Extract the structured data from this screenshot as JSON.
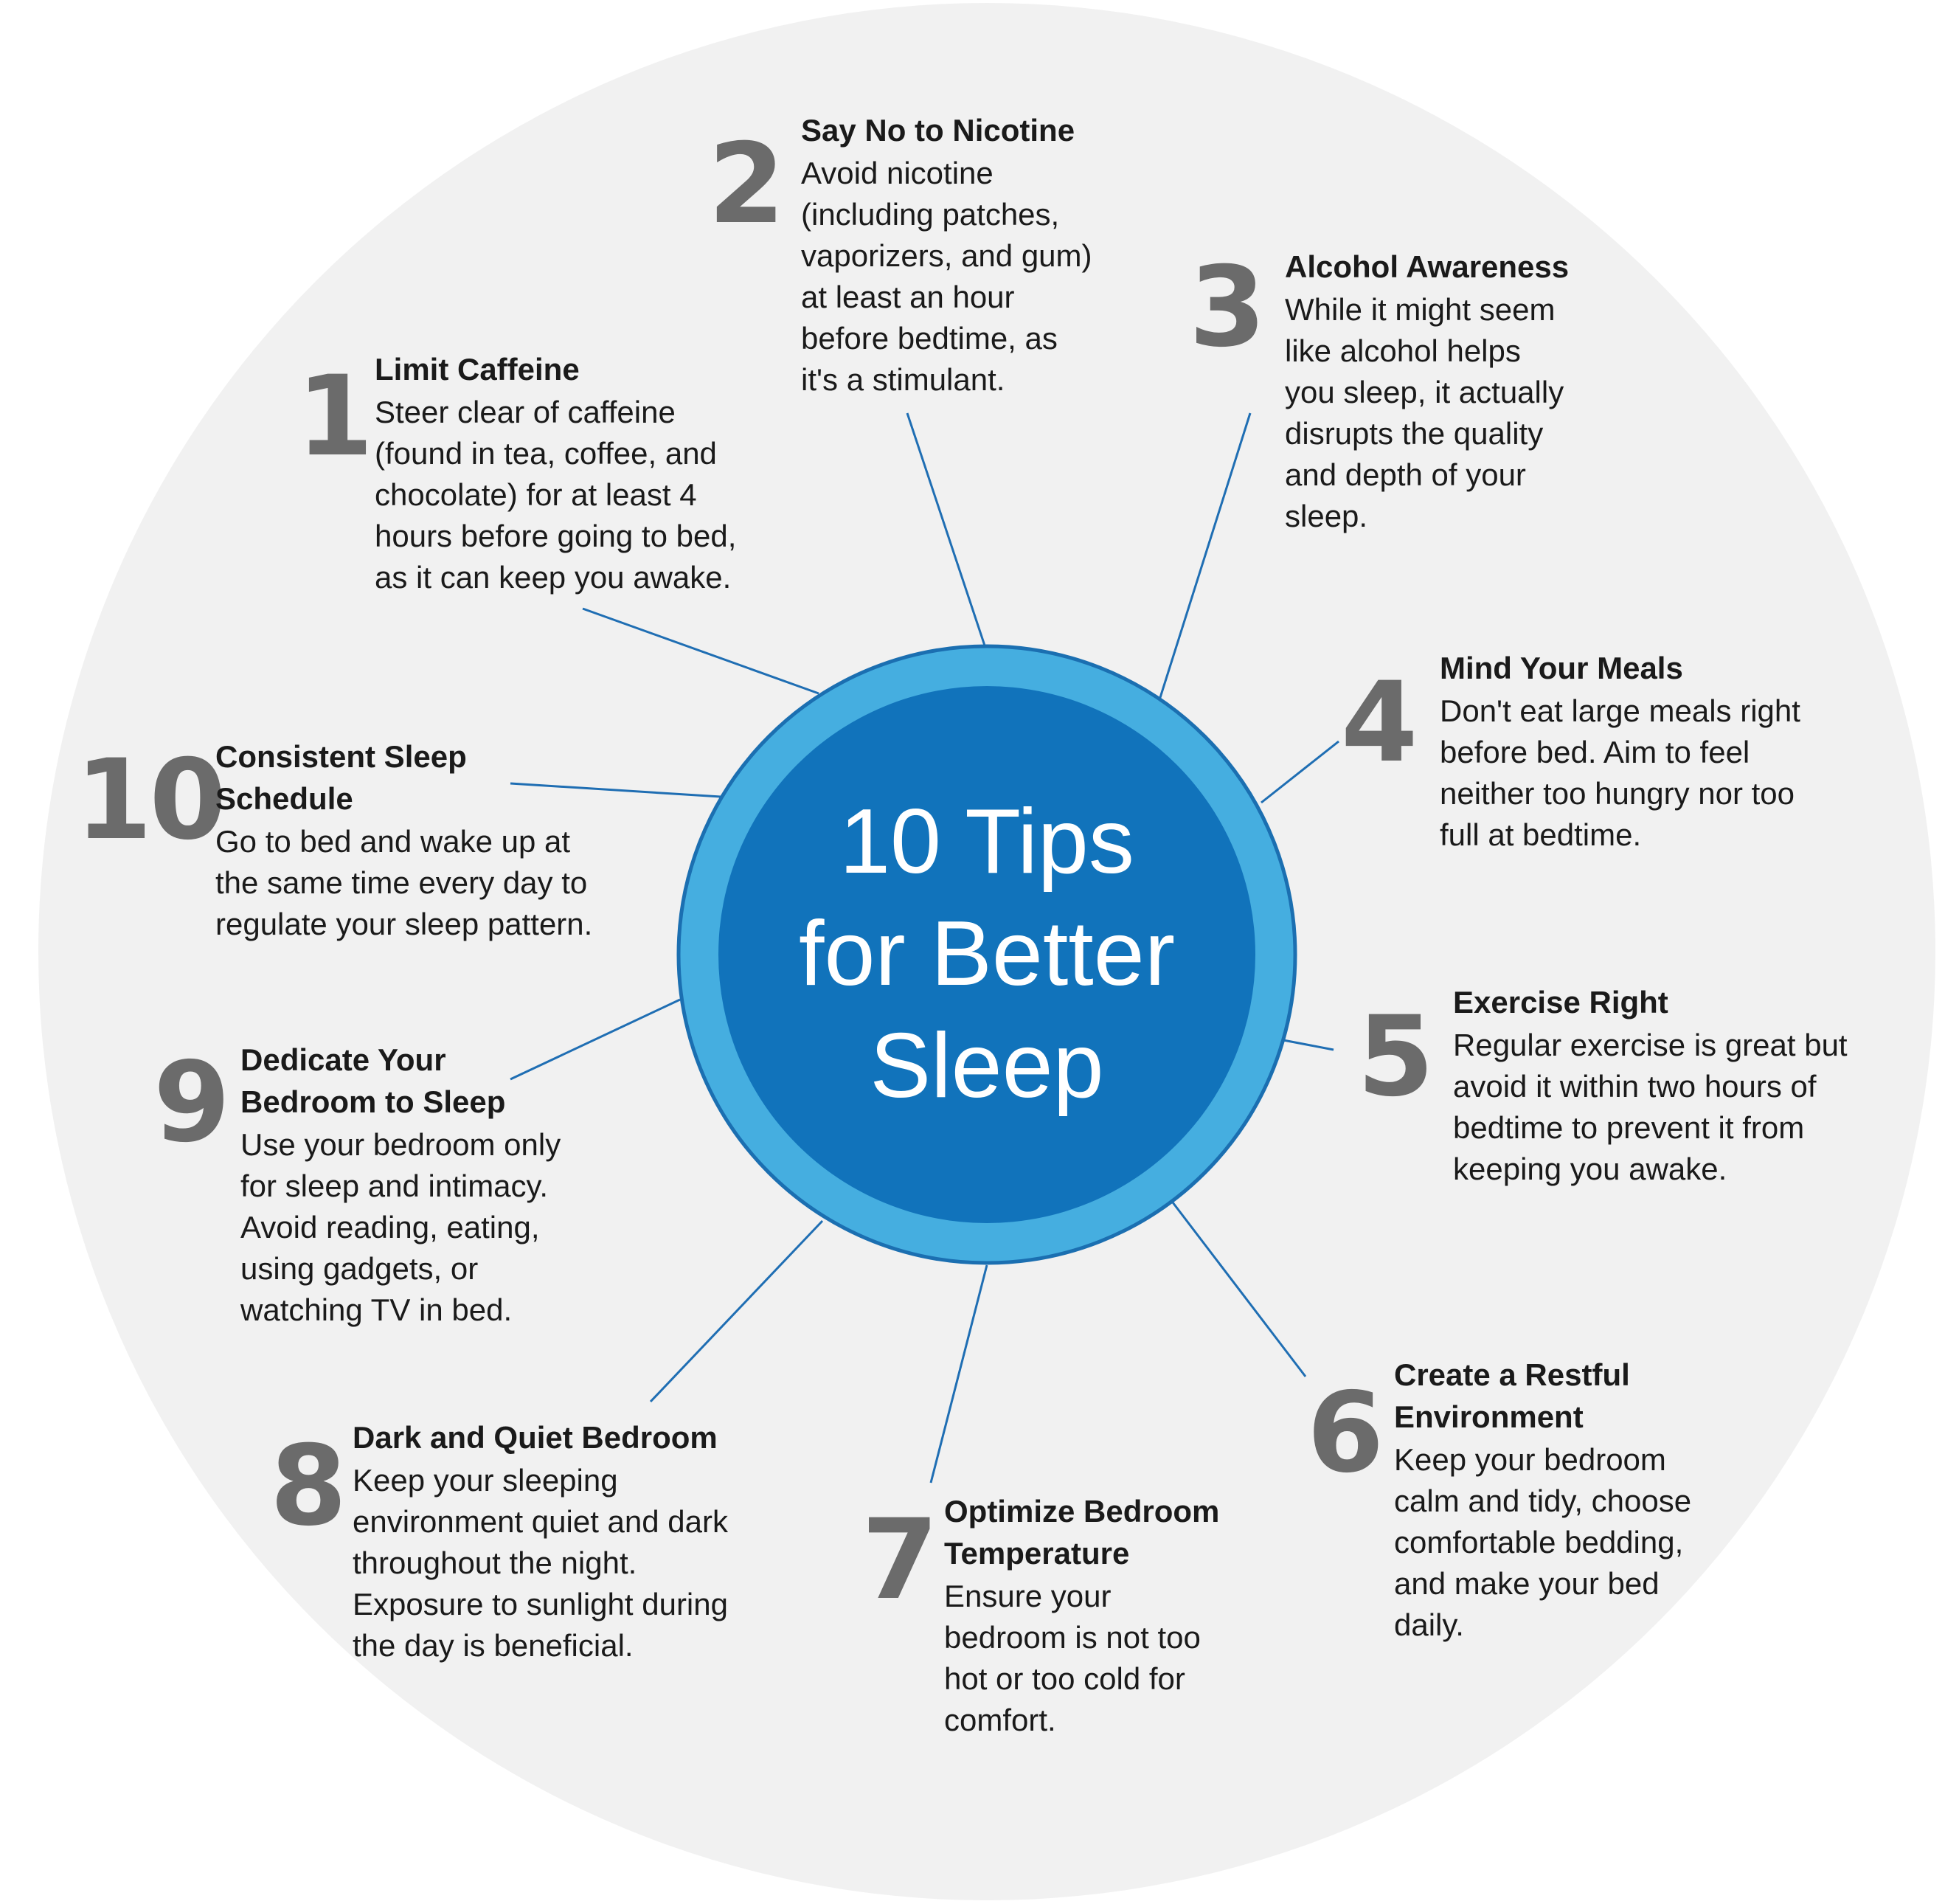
{
  "center": {
    "title": "10 Tips\nfor Better\nSleep"
  },
  "colors": {
    "background_disc": "#f1f1f1",
    "inner_disc": "#1173bb",
    "ring": "#45aee0",
    "ring_border": "#1b6fb1",
    "connector": "#1f6eb3",
    "number": "#6b6b6b",
    "text": "#1a1a1a"
  },
  "tips": [
    {
      "number": "1",
      "title": "Limit Caffeine",
      "text": "Steer clear of caffeine\n(found in tea, coffee, and\nchocolate) for at least 4\nhours before going to bed,\nas it can keep you awake."
    },
    {
      "number": "2",
      "title": "Say No to Nicotine",
      "text": "Avoid nicotine\n(including patches,\nvaporizers, and gum)\nat least an hour\nbefore bedtime, as\nit's a stimulant."
    },
    {
      "number": "3",
      "title": "Alcohol Awareness",
      "text": "While it might seem\nlike alcohol helps\nyou sleep, it actually\ndisrupts the quality\nand depth of your\nsleep."
    },
    {
      "number": "4",
      "title": "Mind Your Meals",
      "text": "Don't eat large meals right\nbefore bed. Aim to feel\nneither too hungry nor too\nfull at bedtime."
    },
    {
      "number": "5",
      "title": "Exercise Right",
      "text": "Regular exercise is great but\navoid it within two hours of\nbedtime to prevent it from\nkeeping you awake."
    },
    {
      "number": "6",
      "title": "Create a Restful\nEnvironment",
      "text": "Keep your bedroom\ncalm and tidy, choose\ncomfortable bedding,\nand make your bed\ndaily."
    },
    {
      "number": "7",
      "title": "Optimize Bedroom\nTemperature",
      "text": "Ensure your\nbedroom is not too\nhot or too cold for\ncomfort."
    },
    {
      "number": "8",
      "title": "Dark and Quiet Bedroom",
      "text": "Keep your sleeping\nenvironment quiet and dark\nthroughout the night.\nExposure to sunlight during\nthe day is beneficial."
    },
    {
      "number": "9",
      "title": "Dedicate Your\nBedroom to Sleep",
      "text": "Use your bedroom only\nfor sleep and intimacy.\nAvoid reading, eating,\nusing gadgets, or\nwatching TV in bed."
    },
    {
      "number": "10",
      "title": "Consistent Sleep\nSchedule",
      "text": "Go to bed and wake up at\nthe same time every day to\nregulate your sleep pattern."
    }
  ]
}
